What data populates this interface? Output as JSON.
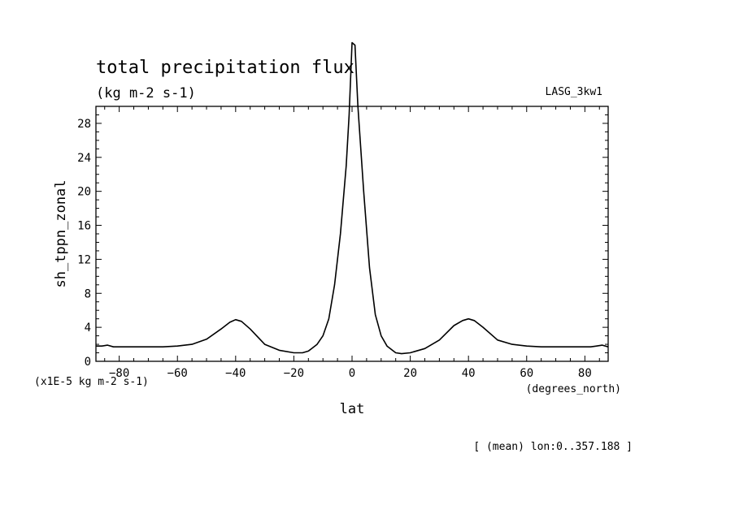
{
  "chart_data": {
    "type": "line",
    "title": "total precipitation flux",
    "subtitle": "(kg m-2 s-1)",
    "model_label": "LASG_3kw1",
    "xlabel": "lat",
    "x_units": "(degrees_north)",
    "ylabel": "sh_tppn_zonal",
    "y_units": "(x1E-5 kg m-2 s-1)",
    "footnote": "[ (mean) lon:0..357.188 ]",
    "xlim": [
      -88,
      88
    ],
    "ylim": [
      0,
      30
    ],
    "xticks": [
      -80,
      -60,
      -40,
      -20,
      0,
      20,
      40,
      60,
      80
    ],
    "yticks": [
      0,
      4,
      8,
      12,
      16,
      20,
      24,
      28
    ],
    "grid": false,
    "series": [
      {
        "x": [
          -88,
          -86,
          -84,
          -82,
          -80,
          -75,
          -70,
          -65,
          -60,
          -55,
          -50,
          -45,
          -42,
          -40,
          -38,
          -35,
          -30,
          -25,
          -20,
          -17,
          -15,
          -12,
          -10,
          -8,
          -6,
          -4,
          -2,
          -1,
          0,
          1,
          2,
          4,
          6,
          8,
          10,
          12,
          15,
          17,
          20,
          25,
          30,
          35,
          38,
          40,
          42,
          45,
          50,
          55,
          60,
          65,
          70,
          75,
          80,
          82,
          84,
          86,
          88
        ],
        "y": [
          1.8,
          1.8,
          1.9,
          1.7,
          1.7,
          1.7,
          1.7,
          1.7,
          1.8,
          2.0,
          2.6,
          3.8,
          4.6,
          4.9,
          4.7,
          3.8,
          2.0,
          1.3,
          1.0,
          1.0,
          1.2,
          2.0,
          3.0,
          5.0,
          9.0,
          15.0,
          23.0,
          29.0,
          37.5,
          37.2,
          30.0,
          20.0,
          11.0,
          5.5,
          3.0,
          1.8,
          1.0,
          0.9,
          1.0,
          1.5,
          2.5,
          4.2,
          4.8,
          5.0,
          4.8,
          4.0,
          2.5,
          2.0,
          1.8,
          1.7,
          1.7,
          1.7,
          1.7,
          1.7,
          1.8,
          1.9,
          1.7
        ]
      }
    ]
  }
}
